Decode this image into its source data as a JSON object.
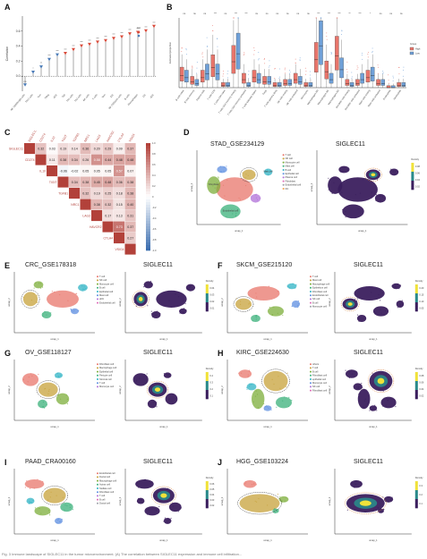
{
  "figure": {
    "panels": {
      "A": {
        "label": "A"
      },
      "B": {
        "label": "B"
      },
      "C": {
        "label": "C"
      },
      "D": {
        "label": "D",
        "title": "STAD_GSE234129",
        "gene": "SIGLEC11"
      },
      "E": {
        "label": "E",
        "title": "CRC_GSE178318",
        "gene": "SIGLEC11"
      },
      "F": {
        "label": "F",
        "title": "SKCM_GSE215120",
        "gene": "SIGLEC11"
      },
      "G": {
        "label": "G",
        "title": "OV_GSE118127",
        "gene": "SIGLEC11"
      },
      "H": {
        "label": "H",
        "title": "KIRC_GSE224630",
        "gene": "SIGLEC11"
      },
      "I": {
        "label": "I",
        "title": "PAAD_CRA00160",
        "gene": "SIGLEC11"
      },
      "J": {
        "label": "J",
        "title": "HGG_GSE103224",
        "gene": "SIGLEC11"
      }
    },
    "umap_xlabel": "umap_1",
    "umap_ylabel": "umap_2",
    "density_label": "Density",
    "legends": {
      "D": [
        "T cell",
        "NK cell",
        "Monocyte cell",
        "Mast cell",
        "B cell",
        "Epithelial cell",
        "Plasma cell",
        "Fibroblast",
        "Endothelial cell",
        "DC"
      ],
      "E": [
        "T cell",
        "NK cell",
        "Monocyte cell",
        "B cell",
        "Epithelial cell",
        "Mast cell",
        "pDC",
        "Endothelial cell"
      ],
      "F": [
        "T cell",
        "Mast cell",
        "Macrophage cell",
        "Epithelium cell",
        "Fibroblast cell",
        "Endothelial cell",
        "NK cell",
        "B cell",
        "Monocyte cell"
      ],
      "G": [
        "Fibroblast cell",
        "Macrophage cell",
        "Epithelial cell",
        "Pericyte cell",
        "Stromal cell",
        "T cell",
        "Monocyte cell"
      ],
      "H": [
        "others",
        "T cell",
        "B cell",
        "Fibroblast cell",
        "epithelial cell",
        "Monocyte cell",
        "NK cell",
        "Fibroblast cell"
      ],
      "I": [
        "Endothelial cell",
        "Ductal cell",
        "Macrophage cell",
        "Acinar cell",
        "Stellate cell",
        "Fibroblast cell",
        "T cell",
        "B cell",
        "Ductal cell"
      ]
    },
    "density_ticks": {
      "D": [
        "0.08",
        "0.06",
        "0.04",
        "0.02"
      ],
      "E": [
        "0.04",
        "0.03",
        "0.02",
        "0.01"
      ],
      "F": [
        "0.20",
        "0.15",
        "0.10",
        "0.05"
      ],
      "G": [
        "0.4",
        "0.3",
        "0.2",
        "0.1"
      ],
      "H": [
        "0.08",
        "0.06",
        "0.04",
        "0.02"
      ],
      "I": [
        "0.06",
        "0.05",
        "0.04",
        "0.03",
        "0.02"
      ],
      "J": [
        "0.3",
        "0.2",
        "0.1"
      ]
    },
    "cell_labels": {
      "D": [
        "Fibroblast",
        "Endothelial cell",
        "Mast cell"
      ]
    },
    "caption": "Fig. 3 Immune landscape of SIGLEC11 in the tumor microenvironment. (A) The correlation between SIGLEC11 expression and immune cell infiltration..."
  },
  "chart_data": [
    {
      "panel": "A",
      "type": "lollipop",
      "ylabel": "Correlation",
      "ylim": [
        -0.2,
        0.8
      ],
      "yticks": [
        0.0,
        0.2,
        0.4,
        0.6
      ],
      "categories": [
        "NK CD56bright cells",
        "Th17 cells",
        "Tcm",
        "TReg",
        "pDC",
        "Tgd",
        "Th1 cells",
        "Th2 cells",
        "NK cells",
        "T cells",
        "Tem",
        "iDC",
        "NK CD56dim cells",
        "B cells",
        "Macrophages",
        "DC",
        "aDC"
      ],
      "values": [
        -0.12,
        0.05,
        0.12,
        0.22,
        0.28,
        0.3,
        0.35,
        0.4,
        0.42,
        0.45,
        0.47,
        0.5,
        0.52,
        0.56,
        0.58,
        0.6,
        0.66
      ],
      "legend_title": "Cor",
      "significance": [
        "ns",
        "*",
        "**",
        "***",
        "***",
        "***",
        "***",
        "***",
        "***",
        "***",
        "***",
        "***",
        "***",
        "***",
        "***",
        "***",
        "***"
      ]
    },
    {
      "panel": "B",
      "type": "box",
      "ylabel": "Estimated proportion",
      "legend_title": "Group",
      "series": [
        {
          "name": "High",
          "color": "#e8756b"
        },
        {
          "name": "Low",
          "color": "#6fa0d8"
        }
      ],
      "categories": [
        "B cells naive",
        "B cells memory",
        "Plasma cells",
        "T cells CD8",
        "T cells CD4 naive",
        "T cells CD4 memory resting",
        "T cells CD4 memory activated",
        "T cells follicular helper",
        "Tregs",
        "T cells gamma delta",
        "NK cells resting",
        "NK cells activated",
        "Monocytes",
        "Macrophages M0",
        "Macrophages M1",
        "Macrophages M2",
        "Dendritic cells resting",
        "Dendritic cells activated",
        "Mast cells resting",
        "Mast cells activated",
        "Eosinophils",
        "Neutrophils"
      ],
      "high_medians": [
        0.06,
        0.03,
        0.05,
        0.1,
        0.01,
        0.13,
        0.04,
        0.05,
        0.03,
        0.01,
        0.02,
        0.04,
        0.01,
        0.14,
        0.08,
        0.16,
        0.02,
        0.02,
        0.05,
        0.02,
        0.0,
        0.01
      ],
      "low_medians": [
        0.05,
        0.02,
        0.07,
        0.07,
        0.01,
        0.17,
        0.01,
        0.04,
        0.03,
        0.01,
        0.02,
        0.03,
        0.01,
        0.21,
        0.04,
        0.09,
        0.01,
        0.04,
        0.06,
        0.02,
        0.0,
        0.01
      ],
      "significance": [
        "ns",
        "ns",
        "ns",
        "***",
        "ns",
        "***",
        "***",
        "ns",
        "ns",
        "ns",
        "ns",
        "ns",
        "ns",
        "***",
        "***",
        "***",
        "**",
        "***",
        "*",
        "ns",
        "ns",
        "ns"
      ]
    },
    {
      "panel": "C",
      "type": "heatmap",
      "labels": [
        "SIGLEC11",
        "CD274",
        "IL10",
        "TIGIT",
        "TGFB1",
        "NRC1",
        "LAG3",
        "HAVCR2",
        "CTLA4",
        "VSIG4"
      ],
      "values": [
        [
          1,
          0.32,
          0.03,
          0.19,
          0.14,
          0.36,
          0.2,
          0.29,
          0.09,
          0.37
        ],
        [
          null,
          1,
          0.11,
          0.38,
          0.34,
          0.26,
          0.58,
          0.44,
          0.48,
          0.48
        ],
        [
          null,
          null,
          1,
          -0.06,
          -0.02,
          0.05,
          0.05,
          0.05,
          0.57,
          0.07
        ],
        [
          null,
          null,
          null,
          1,
          0.34,
          0.38,
          0.45,
          0.48,
          0.36,
          0.38
        ],
        [
          null,
          null,
          null,
          null,
          1,
          0.32,
          0.19,
          0.25,
          0.18,
          0.38
        ],
        [
          null,
          null,
          null,
          null,
          null,
          1,
          0.38,
          0.32,
          0.15,
          0.4
        ],
        [
          null,
          null,
          null,
          null,
          null,
          null,
          1,
          0.17,
          0.13,
          0.31
        ],
        [
          null,
          null,
          null,
          null,
          null,
          null,
          null,
          1,
          0.73,
          0.37
        ],
        [
          null,
          null,
          null,
          null,
          null,
          null,
          null,
          null,
          1,
          0.27
        ],
        [
          null,
          null,
          null,
          null,
          null,
          null,
          null,
          null,
          null,
          1
        ]
      ],
      "colorbar_ticks": [
        "1.0",
        "0.8",
        "0.6",
        "0.4",
        "0.2",
        "0",
        "-0.2",
        "-0.4",
        "-0.6",
        "-0.8",
        "-1.0"
      ]
    }
  ],
  "colors": {
    "lollipop_pos": "#d94a3a",
    "lollipop_neg": "#4a7bb8",
    "heat_pos": "#b2413a",
    "heat_neg": "#3d6fb0",
    "density_low": "#3b1f5e",
    "density_mid": "#2a8a8a",
    "density_high": "#f0e23a"
  }
}
